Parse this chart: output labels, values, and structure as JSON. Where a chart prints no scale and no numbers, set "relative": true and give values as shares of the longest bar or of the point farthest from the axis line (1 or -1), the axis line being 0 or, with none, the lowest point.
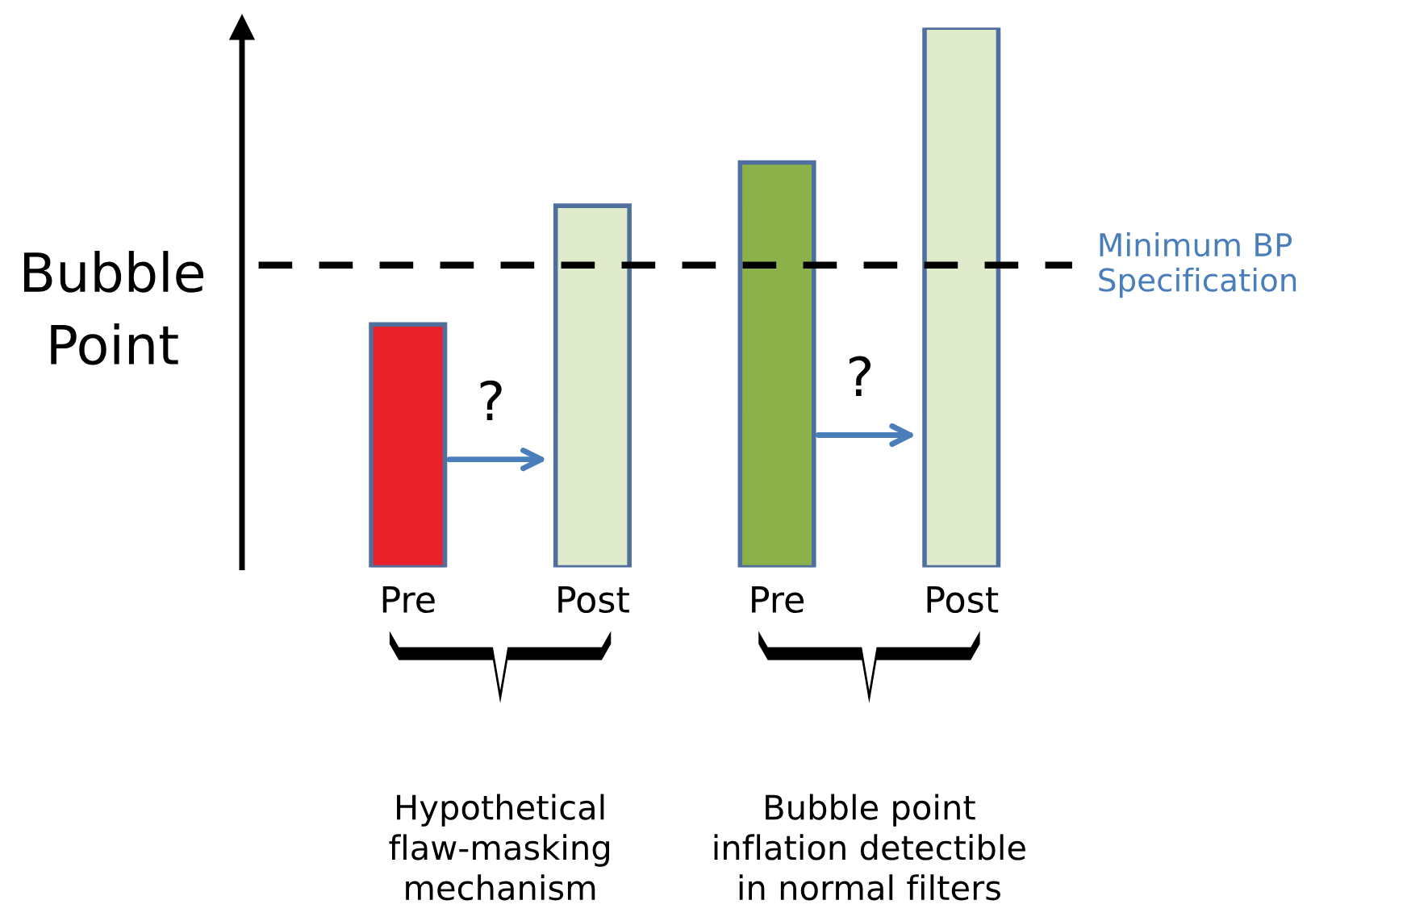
{
  "chart_data": {
    "type": "bar",
    "relative": true,
    "ylabel": "Bubble\nPoint",
    "categories": [
      "Pre",
      "Post",
      "Pre",
      "Post"
    ],
    "values": [
      0.45,
      0.67,
      0.75,
      1
    ],
    "colors": [
      "#e8212a",
      "#e0ebcc",
      "#8cb04a",
      "#e0ebcc"
    ],
    "ref_lines": [
      {
        "axis": "y",
        "value": 0.56,
        "label": "Minimum BP\nSpecification",
        "color": "#000000",
        "line_style": "dashed"
      }
    ],
    "annotations": [
      "?",
      "?",
      "Hypothetical\nflaw-masking\nmechanism",
      "Bubble point\ninflation detectible\nin normal filters"
    ],
    "grid": false,
    "legend": false
  }
}
